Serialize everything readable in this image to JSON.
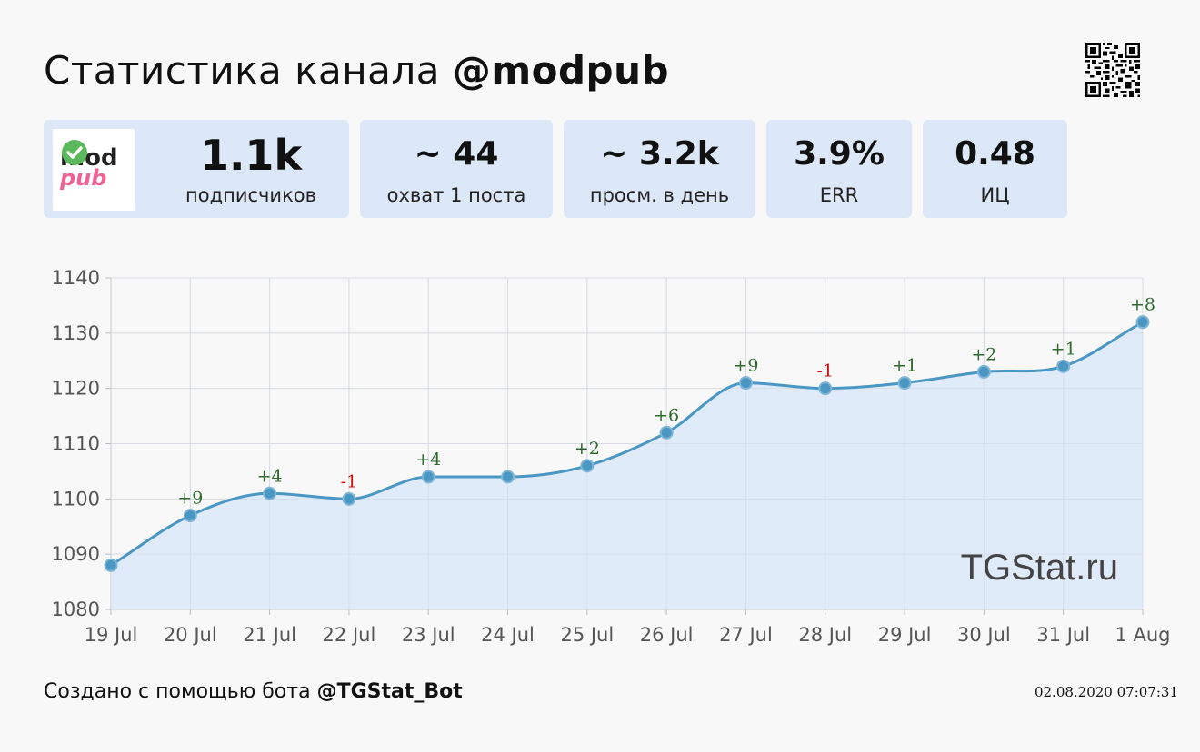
{
  "header": {
    "title_prefix": "Статистика канала",
    "channel": "@modpub"
  },
  "logo": {
    "line1": "mod",
    "line2": "pub",
    "badge_color": "#4caf50"
  },
  "stats": [
    {
      "value": "1.1k",
      "label": "подписчиков"
    },
    {
      "value": "~ 44",
      "label": "охват 1 поста"
    },
    {
      "value": "~ 3.2k",
      "label": "просм. в день"
    },
    {
      "value": "3.9%",
      "label": "ERR"
    },
    {
      "value": "0.48",
      "label": "ИЦ"
    }
  ],
  "chart_data": {
    "type": "area",
    "categories": [
      "19 Jul",
      "20 Jul",
      "21 Jul",
      "22 Jul",
      "23 Jul",
      "24 Jul",
      "25 Jul",
      "26 Jul",
      "27 Jul",
      "28 Jul",
      "29 Jul",
      "30 Jul",
      "31 Jul",
      "1 Aug"
    ],
    "values": [
      1088,
      1097,
      1101,
      1100,
      1104,
      1104,
      1106,
      1112,
      1121,
      1120,
      1121,
      1123,
      1124,
      1132
    ],
    "deltas": [
      "",
      "+9",
      "+4",
      "-1",
      "+4",
      "",
      "+2",
      "+6",
      "+9",
      "-1",
      "+1",
      "+2",
      "+1",
      "+8"
    ],
    "yticks": [
      1080,
      1090,
      1100,
      1110,
      1120,
      1130,
      1140
    ],
    "ylim": [
      1080,
      1140
    ],
    "grid": true,
    "line_color": "#4b97c3",
    "fill_color": "#dde9fa",
    "positive_color": "#2e6b2e",
    "negative_color": "#cc1111",
    "watermark": "TGStat.ru"
  },
  "footer": {
    "text": "Создано с помощью бота",
    "bot": "@TGStat_Bot",
    "timestamp": "02.08.2020 07:07:31"
  }
}
